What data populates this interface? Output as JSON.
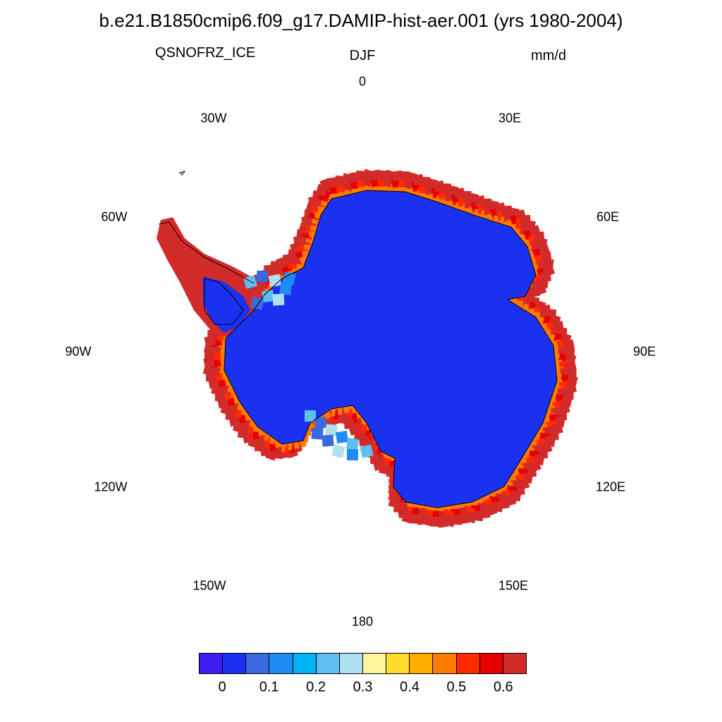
{
  "title": "b.e21.B1850cmip6.f09_g17.DAMIP-hist-aer.001 (yrs 1980-2004)",
  "subtitle": {
    "left": "QSNOFRZ_ICE",
    "center": "DJF",
    "right": "mm/d"
  },
  "longitude_labels": [
    "0",
    "30E",
    "60E",
    "90E",
    "120E",
    "150E",
    "180",
    "150W",
    "120W",
    "90W",
    "60W",
    "30W"
  ],
  "colorbar": {
    "colors": [
      "#3d1cf0",
      "#1a32f0",
      "#3a6ae0",
      "#1f8cf5",
      "#00b4f5",
      "#5ec0f2",
      "#aee0f2",
      "#fff79a",
      "#ffdc2e",
      "#ffae00",
      "#ff7a00",
      "#ff2a00",
      "#e60000",
      "#d32a2a"
    ],
    "labels": [
      "0",
      "0.1",
      "0.2",
      "0.3",
      "0.4",
      "0.5",
      "0.6"
    ]
  },
  "map": {
    "projection": "south polar stereographic",
    "interior_color": "#1a32f0",
    "coastal_fill_colors": [
      "#d32a2a",
      "#e60000",
      "#ff2a00",
      "#ff7a00",
      "#ffdc2e",
      "#fff79a",
      "#aee0f2",
      "#5ec0f2"
    ]
  }
}
